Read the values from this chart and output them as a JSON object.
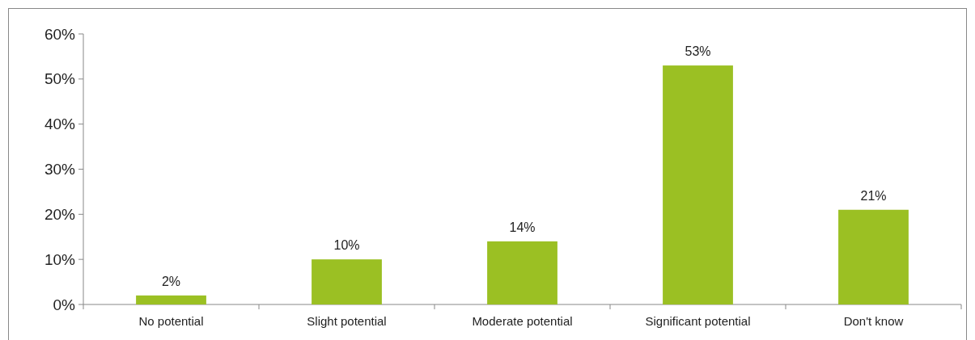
{
  "chart_data": {
    "type": "bar",
    "categories": [
      "No potential",
      "Slight potential",
      "Moderate potential",
      "Significant potential",
      "Don't know"
    ],
    "values": [
      2,
      10,
      14,
      53,
      21
    ],
    "color": "#9bc023",
    "data_labels": true,
    "value_labels": [
      "2%",
      "10%",
      "14%",
      "53%",
      "21%"
    ],
    "ylim": [
      0,
      60
    ],
    "yticks": [
      {
        "value": 0,
        "label": "0%"
      },
      {
        "value": 10,
        "label": "10%"
      },
      {
        "value": 20,
        "label": "20%"
      },
      {
        "value": 30,
        "label": "30%"
      },
      {
        "value": 40,
        "label": "40%"
      },
      {
        "value": 50,
        "label": "50%"
      },
      {
        "value": 60,
        "label": "60%"
      }
    ],
    "grid": false
  }
}
